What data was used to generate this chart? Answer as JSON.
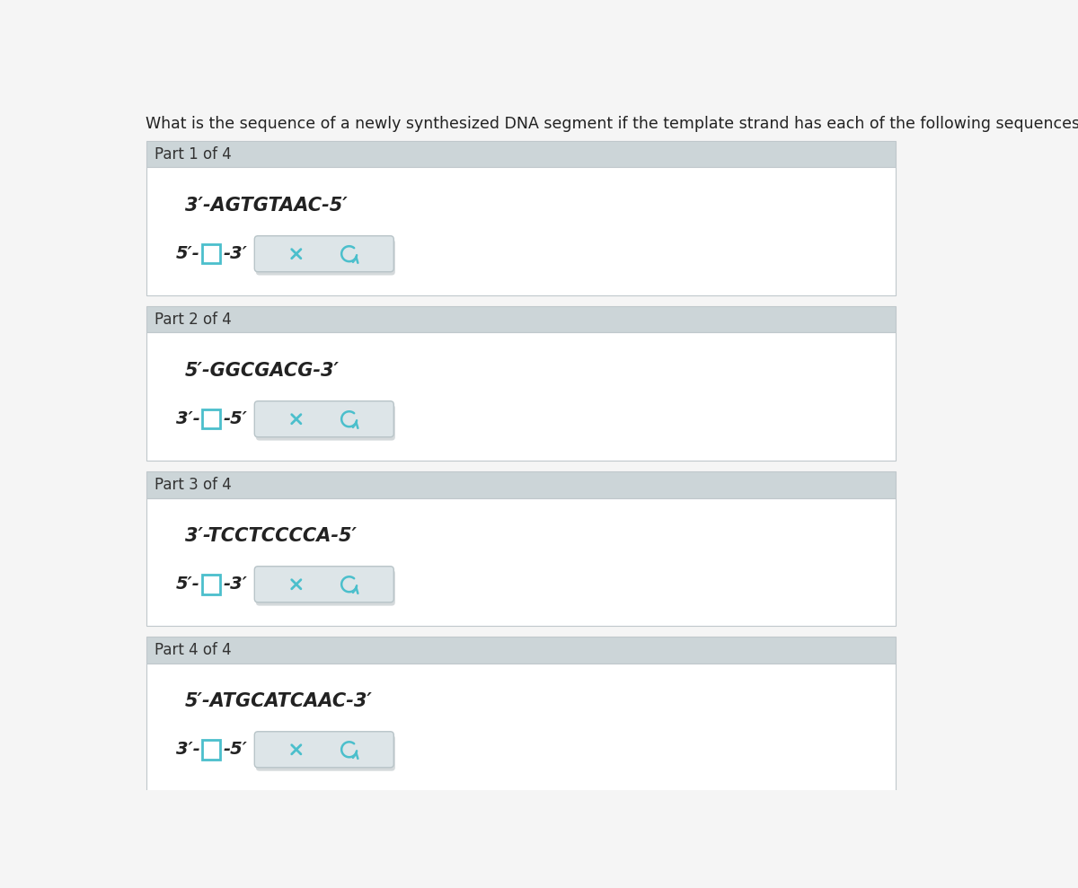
{
  "title": "What is the sequence of a newly synthesized DNA segment if the template strand has each of the following sequences?",
  "title_fontsize": 12.5,
  "bg_color": "#f5f5f5",
  "header_bg": "#ccd5d8",
  "content_bg": "#ffffff",
  "outer_border": "#c0c8cc",
  "parts": [
    {
      "label": "Part 1 of 4",
      "template": "3′-AGTGTAAC-5′",
      "answer_prefix": "5′-",
      "answer_suffix": "-3′"
    },
    {
      "label": "Part 2 of 4",
      "template": "5′-GGCGACG-3′",
      "answer_prefix": "3′-",
      "answer_suffix": "-5′"
    },
    {
      "label": "Part 3 of 4",
      "template": "3′-TCCTCCCCA-5′",
      "answer_prefix": "5′-",
      "answer_suffix": "-3′"
    },
    {
      "label": "Part 4 of 4",
      "template": "5′-ATGCATCAAC-3′",
      "answer_prefix": "3′-",
      "answer_suffix": "-5′"
    }
  ],
  "input_box_color": "#ffffff",
  "input_box_border": "#4bbfcc",
  "button_bg": "#dde5e8",
  "button_border": "#b8c4c8",
  "button_shadow": "#aab4b8",
  "x_color": "#4bbfcc",
  "undo_color": "#4bbfcc",
  "text_color": "#222222",
  "label_color": "#333333",
  "seq_fontsize": 15,
  "label_fontsize": 12,
  "ans_fontsize": 14
}
